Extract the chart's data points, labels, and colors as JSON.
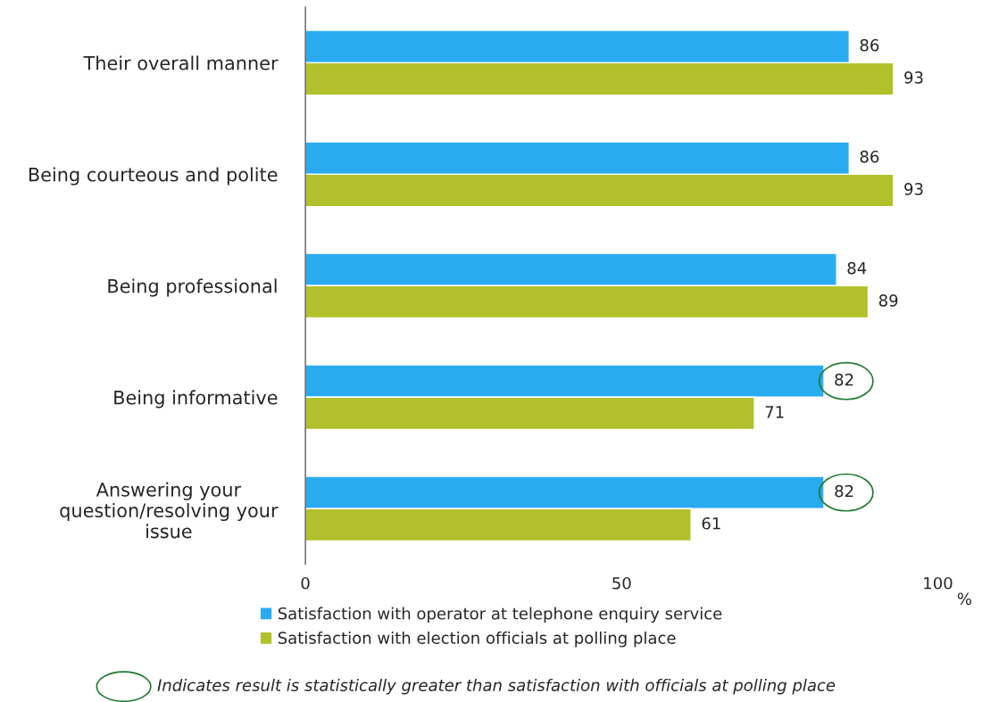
{
  "chart_data": {
    "type": "bar",
    "orientation": "horizontal",
    "categories": [
      "Their overall manner",
      "Being courteous and polite",
      "Being professional",
      "Being informative",
      "Answering your\nquestion/resolving your\nissue"
    ],
    "series": [
      {
        "name": "Satisfaction with operator at telephone enquiry service",
        "color": "#29abf2",
        "values": [
          86,
          86,
          84,
          82,
          82
        ]
      },
      {
        "name": "Satisfaction with election officials at polling place",
        "color": "#b2c12b",
        "values": [
          93,
          93,
          89,
          71,
          61
        ]
      }
    ],
    "xlim": [
      0,
      100
    ],
    "xticks": [
      0,
      50,
      100
    ],
    "xlabel": "%",
    "data_labels": true,
    "legend": "bottom",
    "grid": false,
    "annotations": [
      "Indicates result is statistically greater than satisfaction with officials at polling place"
    ]
  }
}
